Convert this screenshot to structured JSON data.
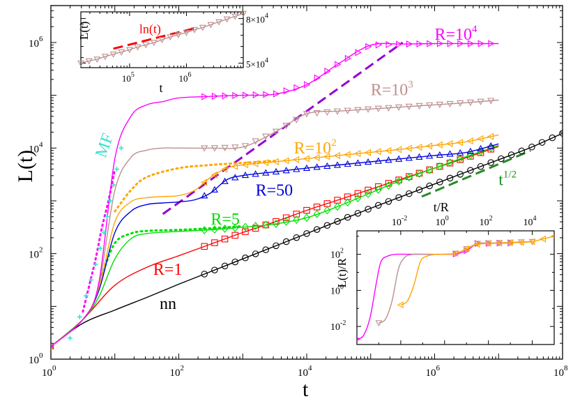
{
  "chart_data": [
    {
      "id": "main",
      "type": "line",
      "xscale": "log",
      "yscale": "log",
      "xlim_exp": [
        0,
        8
      ],
      "ylim_exp": [
        0,
        6.7
      ],
      "xlabel": "t",
      "ylabel": "L(t)",
      "x_ticks": [
        {
          "base": "10",
          "exp": "0"
        },
        {
          "base": "10",
          "exp": "2"
        },
        {
          "base": "10",
          "exp": "4"
        },
        {
          "base": "10",
          "exp": "6"
        },
        {
          "base": "10",
          "exp": "8"
        }
      ],
      "y_ticks": [
        {
          "base": "10",
          "exp": "0"
        },
        {
          "base": "10",
          "exp": "2"
        },
        {
          "base": "10",
          "exp": "4"
        },
        {
          "base": "10",
          "exp": "6"
        }
      ],
      "series": [
        {
          "name": "nn",
          "color": "#000000",
          "marker": "circle",
          "log_t": [
            0,
            0.5,
            1,
            1.5,
            2,
            2.5,
            3,
            3.5,
            4,
            4.5,
            5,
            5.5,
            6,
            6.5,
            7,
            7.5,
            8
          ],
          "log_L": [
            0.24,
            0.68,
            0.93,
            1.17,
            1.42,
            1.66,
            1.9,
            2.14,
            2.38,
            2.62,
            2.86,
            3.09,
            3.32,
            3.55,
            3.78,
            4.01,
            4.28
          ]
        },
        {
          "name": "R=1",
          "color": "#ff0000",
          "marker": "square",
          "log_t": [
            0,
            0.5,
            1,
            1.5,
            2,
            2.5,
            3,
            3.5,
            4,
            4.5,
            5,
            5.5,
            6,
            6.5,
            7
          ],
          "log_L": [
            0.24,
            0.75,
            1.4,
            1.74,
            1.96,
            2.18,
            2.4,
            2.6,
            2.82,
            3.02,
            3.22,
            3.42,
            3.62,
            3.82,
            4.03
          ]
        },
        {
          "name": "R=5",
          "color": "#00dd00",
          "marker": "diamond",
          "log_t": [
            0,
            0.5,
            0.75,
            1,
            1.25,
            1.5,
            2,
            2.5,
            3,
            3.5,
            4,
            4.5,
            5,
            5.5,
            6,
            6.5,
            7
          ],
          "log_L": [
            0.24,
            0.75,
            1.18,
            1.9,
            2.28,
            2.38,
            2.42,
            2.45,
            2.5,
            2.56,
            2.68,
            2.9,
            3.15,
            3.4,
            3.62,
            3.84,
            4.05
          ]
        },
        {
          "name": "R=50",
          "color": "#0000dd",
          "marker": "triangle-up",
          "log_t": [
            0,
            0.5,
            0.75,
            1,
            1.25,
            1.5,
            1.75,
            2,
            2.25,
            2.5,
            2.75,
            3,
            3.5,
            4,
            4.5,
            5,
            5.5,
            6,
            6.5,
            7
          ],
          "log_L": [
            0.24,
            0.75,
            1.3,
            2.4,
            2.8,
            2.93,
            2.96,
            2.98,
            3.02,
            3.15,
            3.4,
            3.48,
            3.55,
            3.62,
            3.68,
            3.74,
            3.8,
            3.86,
            3.92,
            4.08
          ]
        },
        {
          "name": "R=10^2",
          "color": "#ffa500",
          "marker": "triangle-left",
          "log_t": [
            0,
            0.5,
            0.75,
            1,
            1.25,
            1.5,
            1.75,
            2,
            2.25,
            2.5,
            2.75,
            3,
            3.5,
            4,
            4.5,
            5,
            5.5,
            6,
            6.5,
            7
          ],
          "log_L": [
            0.24,
            0.75,
            1.35,
            2.6,
            2.98,
            3.06,
            3.08,
            3.1,
            3.2,
            3.45,
            3.62,
            3.68,
            3.74,
            3.8,
            3.86,
            3.92,
            3.98,
            4.05,
            4.12,
            4.25
          ]
        },
        {
          "name": "R=10^3",
          "color": "#bc8f8f",
          "marker": "triangle-down",
          "log_t": [
            0,
            0.5,
            0.75,
            1,
            1.25,
            1.5,
            1.75,
            2,
            2.5,
            3,
            3.5,
            4,
            4.5,
            5,
            5.5,
            6,
            6.5,
            7
          ],
          "log_L": [
            0.24,
            0.75,
            1.4,
            3.2,
            3.82,
            3.96,
            4,
            4,
            4.0,
            4.02,
            4.3,
            4.65,
            4.7,
            4.74,
            4.78,
            4.82,
            4.86,
            4.91
          ]
        },
        {
          "name": "R=10^4",
          "color": "#ff00ff",
          "marker": "triangle-right",
          "log_t": [
            0,
            0.5,
            0.75,
            1,
            1.25,
            1.5,
            1.75,
            2,
            2.5,
            3,
            3.5,
            4,
            4.5,
            5,
            5.5,
            6,
            6.5,
            7
          ],
          "log_L": [
            0.24,
            0.75,
            1.45,
            3.8,
            4.6,
            4.82,
            4.88,
            4.95,
            4.98,
            5.0,
            5.02,
            5.2,
            5.6,
            5.95,
            5.97,
            5.98,
            5.98,
            5.98
          ]
        }
      ],
      "dotted_curves": [
        {
          "name": "R=5 dotted",
          "color": "#00dd00",
          "log_t": [
            0.8,
            1.0,
            1.25,
            1.5,
            2,
            2.5,
            3
          ],
          "log_L": [
            1.6,
            2.2,
            2.38,
            2.43,
            2.45,
            2.48,
            2.52
          ]
        },
        {
          "name": "R=10^2 dotted",
          "color": "#ffa500",
          "log_t": [
            1.0,
            1.25,
            1.5,
            2,
            2.5,
            3,
            3.5
          ],
          "log_L": [
            2.8,
            3.2,
            3.45,
            3.62,
            3.68,
            3.72,
            3.76
          ]
        },
        {
          "name": "MF dotted",
          "color": "#ff00ff",
          "log_t": [
            0.5,
            0.6,
            0.7,
            0.8,
            0.9,
            1.0
          ],
          "log_L": [
            0.9,
            1.4,
            1.9,
            2.5,
            3.0,
            3.6
          ]
        }
      ],
      "mf_points": {
        "name": "MF",
        "color": "#40e0d0",
        "log_t": [
          0.3,
          0.45,
          0.55,
          0.63,
          0.7,
          0.77,
          0.83,
          0.88,
          0.93,
          0.98,
          1.03,
          1.1
        ],
        "log_L": [
          0.4,
          0.8,
          1.2,
          1.5,
          1.8,
          2.1,
          2.4,
          2.7,
          3.0,
          3.3,
          3.6,
          4.0
        ]
      },
      "guides": [
        {
          "name": "t^1/2",
          "color": "#228b22",
          "log_t": [
            5.8,
            7.5
          ],
          "log_L": [
            3.08,
            3.95
          ]
        },
        {
          "name": "t",
          "color": "#9400d3",
          "log_t": [
            1.75,
            5.5
          ],
          "log_L": [
            2.75,
            6.0
          ]
        }
      ],
      "labels": [
        {
          "text": "R=10",
          "sup": "4",
          "color": "#ff00ff",
          "log_t": 6.0,
          "log_L": 6.05
        },
        {
          "text": "R=10",
          "sup": "3",
          "color": "#bc8f8f",
          "log_t": 5.0,
          "log_L": 5.0
        },
        {
          "text": "R=10",
          "sup": "2",
          "color": "#ffa500",
          "log_t": 3.8,
          "log_L": 3.9
        },
        {
          "text": "R=50",
          "color": "#0000dd",
          "log_t": 3.2,
          "log_L": 3.1
        },
        {
          "text": "R=5",
          "color": "#00dd00",
          "log_t": 2.5,
          "log_L": 2.55
        },
        {
          "text": "R=1",
          "color": "#ff0000",
          "log_t": 1.6,
          "log_L": 1.6
        },
        {
          "text": "nn",
          "color": "#000000",
          "log_t": 1.7,
          "log_L": 0.95
        },
        {
          "text": "MF",
          "color": "#40e0d0",
          "log_t": 0.85,
          "log_L": 3.8,
          "rotate": -70
        },
        {
          "text": "t",
          "sup": "1/2",
          "color": "#228b22",
          "log_t": 7.0,
          "log_L": 3.3
        }
      ]
    },
    {
      "id": "inset_top",
      "type": "line",
      "xlabel": "t",
      "ylabel": "L(t)",
      "x_ticks": [
        {
          "base": "10",
          "exp": "5"
        },
        {
          "base": "10",
          "exp": "6"
        }
      ],
      "y_ticks": [
        {
          "text": "5×10",
          "exp": "4"
        },
        {
          "text": "8×10",
          "exp": "4"
        }
      ],
      "series": [
        {
          "name": "R=10^3",
          "color": "#bc8f8f",
          "marker": "triangle-down",
          "x": [
            0,
            0.05,
            0.1,
            0.15,
            0.2,
            0.25,
            0.3,
            0.35,
            0.4,
            0.45,
            0.5,
            0.55,
            0.6,
            0.65,
            0.7,
            0.75,
            0.8,
            0.85,
            0.9,
            0.95,
            1.0
          ],
          "y": [
            0.08,
            0.12,
            0.15,
            0.2,
            0.24,
            0.28,
            0.32,
            0.37,
            0.41,
            0.45,
            0.5,
            0.55,
            0.59,
            0.63,
            0.68,
            0.72,
            0.77,
            0.82,
            0.87,
            0.92,
            0.97
          ]
        }
      ],
      "guide": {
        "name": "ln(t)",
        "color": "#ff0000",
        "x": [
          0.2,
          0.72
        ],
        "y": [
          0.34,
          0.72
        ]
      },
      "label": {
        "text": "ln(t)",
        "color": "#ff0000"
      }
    },
    {
      "id": "inset_bottom",
      "type": "line",
      "xlabel": "t/R",
      "ylabel": "L(t)/R",
      "x_ticks": [
        {
          "base": "10",
          "exp": "-2"
        },
        {
          "base": "10",
          "exp": "0"
        },
        {
          "base": "10",
          "exp": "2"
        },
        {
          "base": "10",
          "exp": "4"
        }
      ],
      "y_ticks": [
        {
          "base": "10",
          "exp": "-2"
        },
        {
          "base": "10",
          "exp": "0"
        },
        {
          "base": "10",
          "exp": "2"
        }
      ],
      "series": [
        {
          "name": "R=10^4",
          "color": "#ff00ff",
          "marker": "triangle-right",
          "log_x": [
            -4,
            -3.7,
            -3.4,
            -3.1,
            -2.9,
            -2.6,
            -2.2,
            -1.5,
            -1,
            0,
            0.5,
            1,
            1.5,
            2,
            2.5,
            3
          ],
          "log_y": [
            -2.7,
            -2.5,
            -1.5,
            0.5,
            1.6,
            1.9,
            2.0,
            2.0,
            2.0,
            2.0,
            2.02,
            2.2,
            2.6,
            2.6,
            2.62,
            2.62
          ]
        },
        {
          "name": "R=10^3",
          "color": "#bc8f8f",
          "marker": "triangle-down",
          "log_x": [
            -3,
            -2.7,
            -2.4,
            -2.1,
            -1.8,
            -1.4,
            -1,
            0,
            0.5,
            1,
            1.5,
            2,
            2.5,
            3,
            3.5,
            4
          ],
          "log_y": [
            -1.8,
            -1.6,
            -0.6,
            1.2,
            1.85,
            2.0,
            2.0,
            2.0,
            2.05,
            2.3,
            2.6,
            2.62,
            2.64,
            2.66,
            2.68,
            2.7
          ]
        },
        {
          "name": "R=10^2",
          "color": "#ffa500",
          "marker": "triangle-left",
          "log_x": [
            -2,
            -1.7,
            -1.4,
            -1.1,
            -0.8,
            -0.4,
            0,
            0.5,
            1,
            1.5,
            2,
            2.5,
            3,
            3.5,
            4,
            4.5,
            5
          ],
          "log_y": [
            -0.8,
            -0.6,
            0.3,
            1.6,
            1.9,
            2.0,
            2.0,
            2.05,
            2.3,
            2.55,
            2.6,
            2.62,
            2.64,
            2.66,
            2.7,
            2.85,
            3.0
          ]
        }
      ]
    }
  ]
}
